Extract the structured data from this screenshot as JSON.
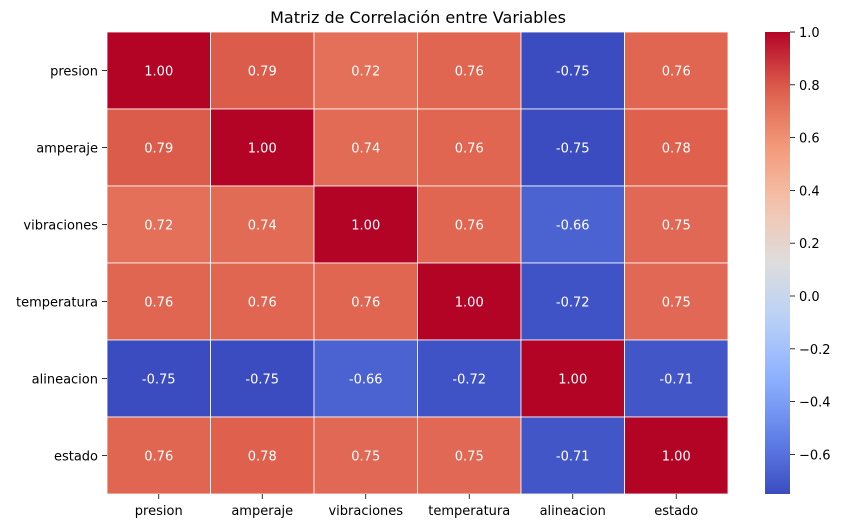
{
  "chart_data": {
    "type": "heatmap",
    "title": "Matriz de Correlación entre Variables",
    "xlabel": "",
    "ylabel": "",
    "x_categories": [
      "presion",
      "amperaje",
      "vibraciones",
      "temperatura",
      "alineacion",
      "estado"
    ],
    "y_categories": [
      "presion",
      "amperaje",
      "vibraciones",
      "temperatura",
      "alineacion",
      "estado"
    ],
    "values": [
      [
        1.0,
        0.79,
        0.72,
        0.76,
        -0.75,
        0.76
      ],
      [
        0.79,
        1.0,
        0.74,
        0.76,
        -0.75,
        0.78
      ],
      [
        0.72,
        0.74,
        1.0,
        0.76,
        -0.66,
        0.75
      ],
      [
        0.76,
        0.76,
        0.76,
        1.0,
        -0.72,
        0.75
      ],
      [
        -0.75,
        -0.75,
        -0.66,
        -0.72,
        1.0,
        -0.71
      ],
      [
        0.76,
        0.78,
        0.75,
        0.75,
        -0.71,
        1.0
      ]
    ],
    "value_format": "2 decimals",
    "colormap": "coolwarm",
    "color_range": [
      -0.75,
      1.0
    ],
    "colorbar_ticks": [
      "1.0",
      "0.8",
      "0.6",
      "0.4",
      "0.2",
      "0.0",
      "−0.2",
      "−0.4",
      "−0.6"
    ],
    "colorbar_tick_values": [
      1.0,
      0.8,
      0.6,
      0.4,
      0.2,
      0.0,
      -0.2,
      -0.4,
      -0.6
    ],
    "grid": true,
    "legend": "colorbar-right"
  }
}
